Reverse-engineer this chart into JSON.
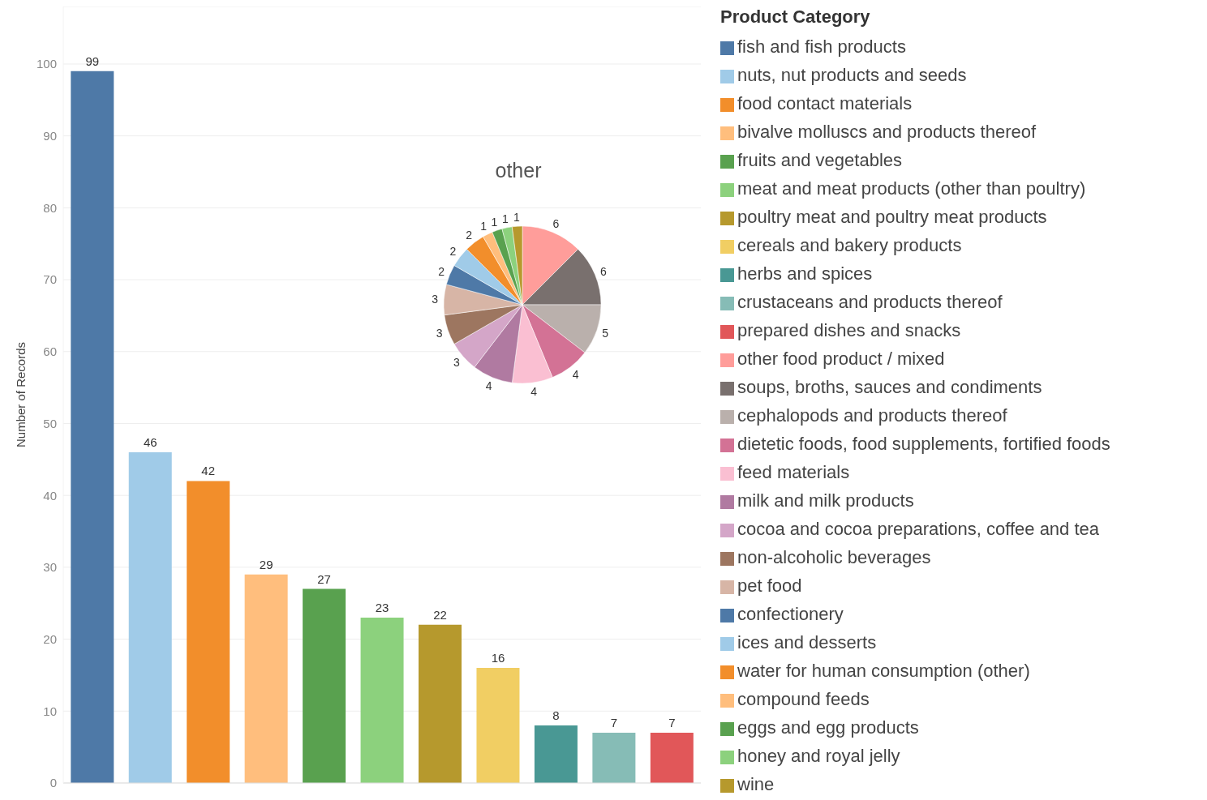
{
  "chart_data": [
    {
      "type": "bar",
      "ylabel": "Number of Records",
      "legend_title": "Product Category",
      "legend": "right",
      "stacked": true,
      "categories": [
        null,
        null,
        null,
        null,
        null,
        null,
        null,
        null,
        null,
        null,
        null
      ],
      "series": [
        {
          "name": "fish and fish products",
          "color": "#4e79a7",
          "values": [
            99,
            null,
            null,
            null,
            null,
            null,
            null,
            null,
            null,
            null,
            null
          ]
        },
        {
          "name": "nuts, nut products and seeds",
          "color": "#a0cbe8",
          "values": [
            null,
            46,
            null,
            null,
            null,
            null,
            null,
            null,
            null,
            null,
            null
          ]
        },
        {
          "name": "food contact materials",
          "color": "#f28e2b",
          "values": [
            null,
            null,
            42,
            null,
            null,
            null,
            null,
            null,
            null,
            null,
            null
          ]
        },
        {
          "name": "bivalve molluscs and products thereof",
          "color": "#ffbe7d",
          "values": [
            null,
            null,
            null,
            29,
            null,
            null,
            null,
            null,
            null,
            null,
            null
          ]
        },
        {
          "name": "fruits and vegetables",
          "color": "#59a14f",
          "values": [
            null,
            null,
            null,
            null,
            27,
            null,
            null,
            null,
            null,
            null,
            null
          ]
        },
        {
          "name": "meat and meat products (other than poultry)",
          "color": "#8cd17d",
          "values": [
            null,
            null,
            null,
            null,
            null,
            23,
            null,
            null,
            null,
            null,
            null
          ]
        },
        {
          "name": "poultry meat and poultry meat products",
          "color": "#b6992d",
          "values": [
            null,
            null,
            null,
            null,
            null,
            null,
            22,
            null,
            null,
            null,
            null
          ]
        },
        {
          "name": "cereals and bakery products",
          "color": "#f1ce63",
          "values": [
            null,
            null,
            null,
            null,
            null,
            null,
            null,
            16,
            null,
            null,
            null
          ]
        },
        {
          "name": "herbs and spices",
          "color": "#499894",
          "values": [
            null,
            null,
            null,
            null,
            null,
            null,
            null,
            null,
            8,
            null,
            null
          ]
        },
        {
          "name": "crustaceans and products thereof",
          "color": "#86bcb6",
          "values": [
            null,
            null,
            null,
            null,
            null,
            null,
            null,
            null,
            null,
            7,
            null
          ]
        },
        {
          "name": "prepared dishes and snacks",
          "color": "#e15759",
          "values": [
            null,
            null,
            null,
            null,
            null,
            null,
            null,
            null,
            null,
            null,
            7
          ]
        }
      ],
      "ylim": [
        0,
        108
      ],
      "yticks": [
        0,
        10,
        20,
        30,
        40,
        50,
        60,
        70,
        80,
        90,
        100
      ],
      "grid": "y",
      "tick_labels": "y",
      "data_labels": true
    },
    {
      "type": "pie",
      "title": "other",
      "legend": "right",
      "categories": [
        "other food product / mixed",
        "soups, broths, sauces and condiments",
        "cephalopods and products thereof",
        "dietetic foods, food supplements, fortified foods",
        "feed materials",
        "milk and milk products",
        "cocoa and cocoa preparations, coffee and tea",
        "non-alcoholic beverages",
        "pet food",
        "confectionery",
        "ices and desserts",
        "water for human consumption (other)",
        "compound feeds",
        "eggs and egg products",
        "honey and royal jelly",
        "wine"
      ],
      "values": [
        6,
        6,
        5,
        4,
        4,
        4,
        3,
        3,
        3,
        2,
        2,
        2,
        1,
        1,
        1,
        1
      ],
      "colors": [
        "#ff9d9a",
        "#79706e",
        "#bab0ac",
        "#d37295",
        "#fabfd2",
        "#b07aa1",
        "#d4a6c8",
        "#9d7660",
        "#d7b5a6",
        "#4e79a7",
        "#a0cbe8",
        "#f28e2b",
        "#ffbe7d",
        "#59a14f",
        "#8cd17d",
        "#b6992d"
      ],
      "data_labels": true
    }
  ]
}
